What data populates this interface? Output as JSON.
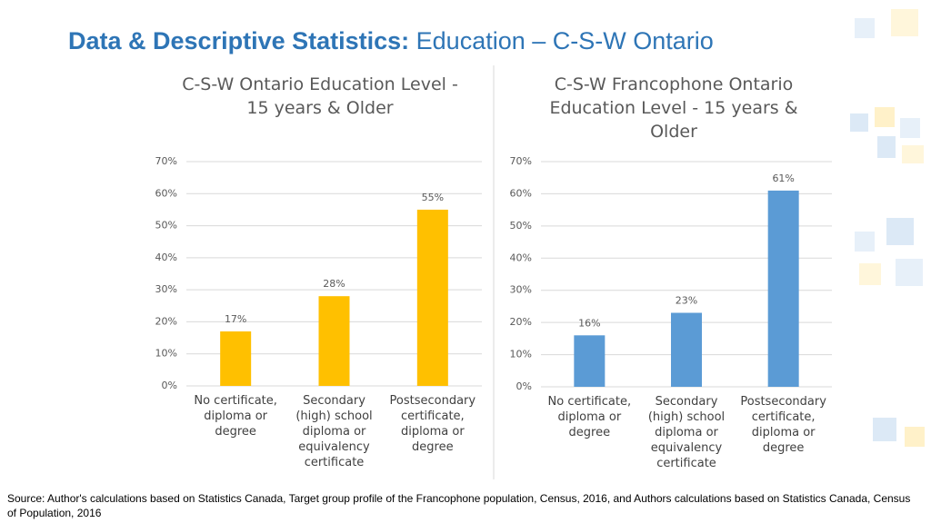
{
  "header": {
    "title_bold": "Data & Descriptive Statistics:",
    "title_rest": "Education – C-S-W Ontario"
  },
  "chart_data": [
    {
      "type": "bar",
      "title": "C-S-W Ontario Education Level - 15 years & Older",
      "categories": [
        "No certificate, diploma or degree",
        "Secondary (high) school diploma or equivalency certificate",
        "Postsecondary certificate, diploma or degree"
      ],
      "values": [
        17,
        28,
        55
      ],
      "value_labels": [
        "17%",
        "28%",
        "55%"
      ],
      "color": "#ffc000",
      "ylim": [
        0,
        70
      ],
      "yticks": [
        {
          "value": 0,
          "label": "0%"
        },
        {
          "value": 10,
          "label": "10%"
        },
        {
          "value": 20,
          "label": "20%"
        },
        {
          "value": 30,
          "label": "30%"
        },
        {
          "value": 40,
          "label": "40%"
        },
        {
          "value": 50,
          "label": "50%"
        },
        {
          "value": 60,
          "label": "60%"
        },
        {
          "value": 70,
          "label": "70%"
        }
      ],
      "grid": true
    },
    {
      "type": "bar",
      "title": "C-S-W Francophone Ontario Education Level - 15 years & Older",
      "categories": [
        "No certificate, diploma or degree",
        "Secondary (high) school diploma or equivalency certificate",
        "Postsecondary certificate, diploma or degree"
      ],
      "values": [
        16,
        23,
        61
      ],
      "value_labels": [
        "16%",
        "23%",
        "61%"
      ],
      "color": "#5b9bd5",
      "ylim": [
        0,
        70
      ],
      "yticks": [
        {
          "value": 0,
          "label": "0%"
        },
        {
          "value": 10,
          "label": "10%"
        },
        {
          "value": 20,
          "label": "20%"
        },
        {
          "value": 30,
          "label": "30%"
        },
        {
          "value": 40,
          "label": "40%"
        },
        {
          "value": 50,
          "label": "50%"
        },
        {
          "value": 60,
          "label": "60%"
        },
        {
          "value": 70,
          "label": "70%"
        }
      ],
      "grid": true
    }
  ],
  "source": "Source: Author's calculations based on Statistics Canada, Target group profile of the Francophone population, Census, 2016, and Authors calculations based on Statistics Canada, Census of Population, 2016"
}
